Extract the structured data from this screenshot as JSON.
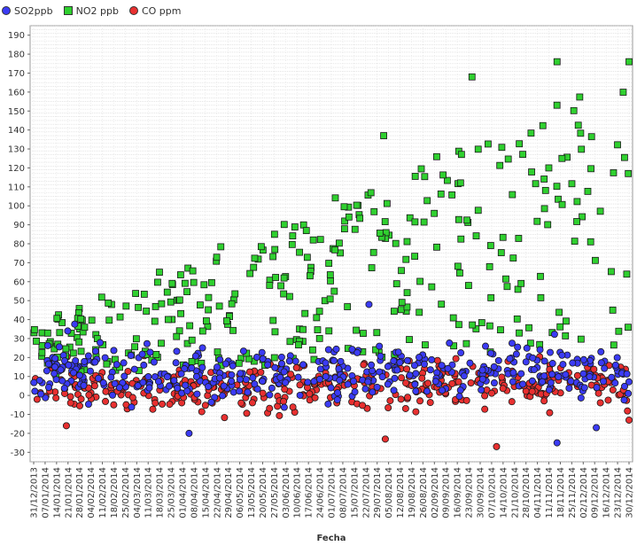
{
  "chart_data": {
    "type": "scatter",
    "title": "",
    "xlabel": "Fecha",
    "ylabel": "",
    "ylim": [
      -35,
      195
    ],
    "yticks": [
      -30,
      -20,
      -10,
      0,
      10,
      20,
      30,
      40,
      50,
      60,
      70,
      80,
      90,
      100,
      110,
      120,
      130,
      140,
      150,
      160,
      170,
      180,
      190
    ],
    "x_tick_labels": [
      "31/12/2013",
      "07/01/2014",
      "14/01/2014",
      "21/01/2014",
      "28/01/2014",
      "04/02/2014",
      "11/02/2014",
      "18/02/2014",
      "25/02/2014",
      "04/03/2014",
      "11/03/2014",
      "18/03/2014",
      "25/03/2014",
      "01/04/2014",
      "08/04/2014",
      "15/04/2014",
      "22/04/2014",
      "29/04/2014",
      "06/05/2014",
      "13/05/2014",
      "20/05/2014",
      "27/05/2014",
      "03/06/2014",
      "10/06/2014",
      "17/06/2014",
      "24/06/2014",
      "01/07/2014",
      "08/07/2014",
      "15/07/2014",
      "22/07/2014",
      "29/07/2014",
      "05/08/2014",
      "12/08/2014",
      "19/08/2014",
      "26/08/2014",
      "02/09/2014",
      "09/09/2014",
      "16/09/2014",
      "23/09/2014",
      "30/09/2014",
      "07/10/2014",
      "14/10/2014",
      "21/10/2014",
      "28/10/2014",
      "04/11/2014",
      "11/11/2014",
      "18/11/2014",
      "25/11/2014",
      "02/12/2014",
      "09/12/2014",
      "16/12/2014",
      "23/12/2014",
      "30/12/2014"
    ],
    "grid": true,
    "legend_position": "top-left",
    "series": [
      {
        "name": "SO2ppb",
        "color": "#3b3bf5",
        "marker": "circle",
        "x_start": 0,
        "x_end": 364,
        "trend_start": 12,
        "trend_end": 12,
        "spread": 12,
        "count": 420,
        "seed": 11,
        "outliers": [
          {
            "x": 95,
            "y": -20
          },
          {
            "x": 320,
            "y": -25
          },
          {
            "x": 344,
            "y": -17
          },
          {
            "x": 205,
            "y": 48
          }
        ]
      },
      {
        "name": "NO2 ppb",
        "color": "#2fd02f",
        "marker": "square",
        "x_start": 0,
        "x_end": 364,
        "trend_start": 22,
        "trend_end": 155,
        "spread": 50,
        "count": 360,
        "seed": 23,
        "outliers": [
          {
            "x": 320,
            "y": 176
          },
          {
            "x": 364,
            "y": 176
          },
          {
            "x": 214,
            "y": 137
          },
          {
            "x": 268,
            "y": 168
          }
        ]
      },
      {
        "name": "CO ppm",
        "color": "#e83030",
        "marker": "circle",
        "x_start": 0,
        "x_end": 364,
        "trend_start": 2,
        "trend_end": 6,
        "spread": 10,
        "count": 380,
        "seed": 37,
        "outliers": [
          {
            "x": 215,
            "y": -23
          },
          {
            "x": 283,
            "y": -27
          },
          {
            "x": 20,
            "y": -16
          },
          {
            "x": 364,
            "y": -13
          }
        ]
      }
    ]
  }
}
